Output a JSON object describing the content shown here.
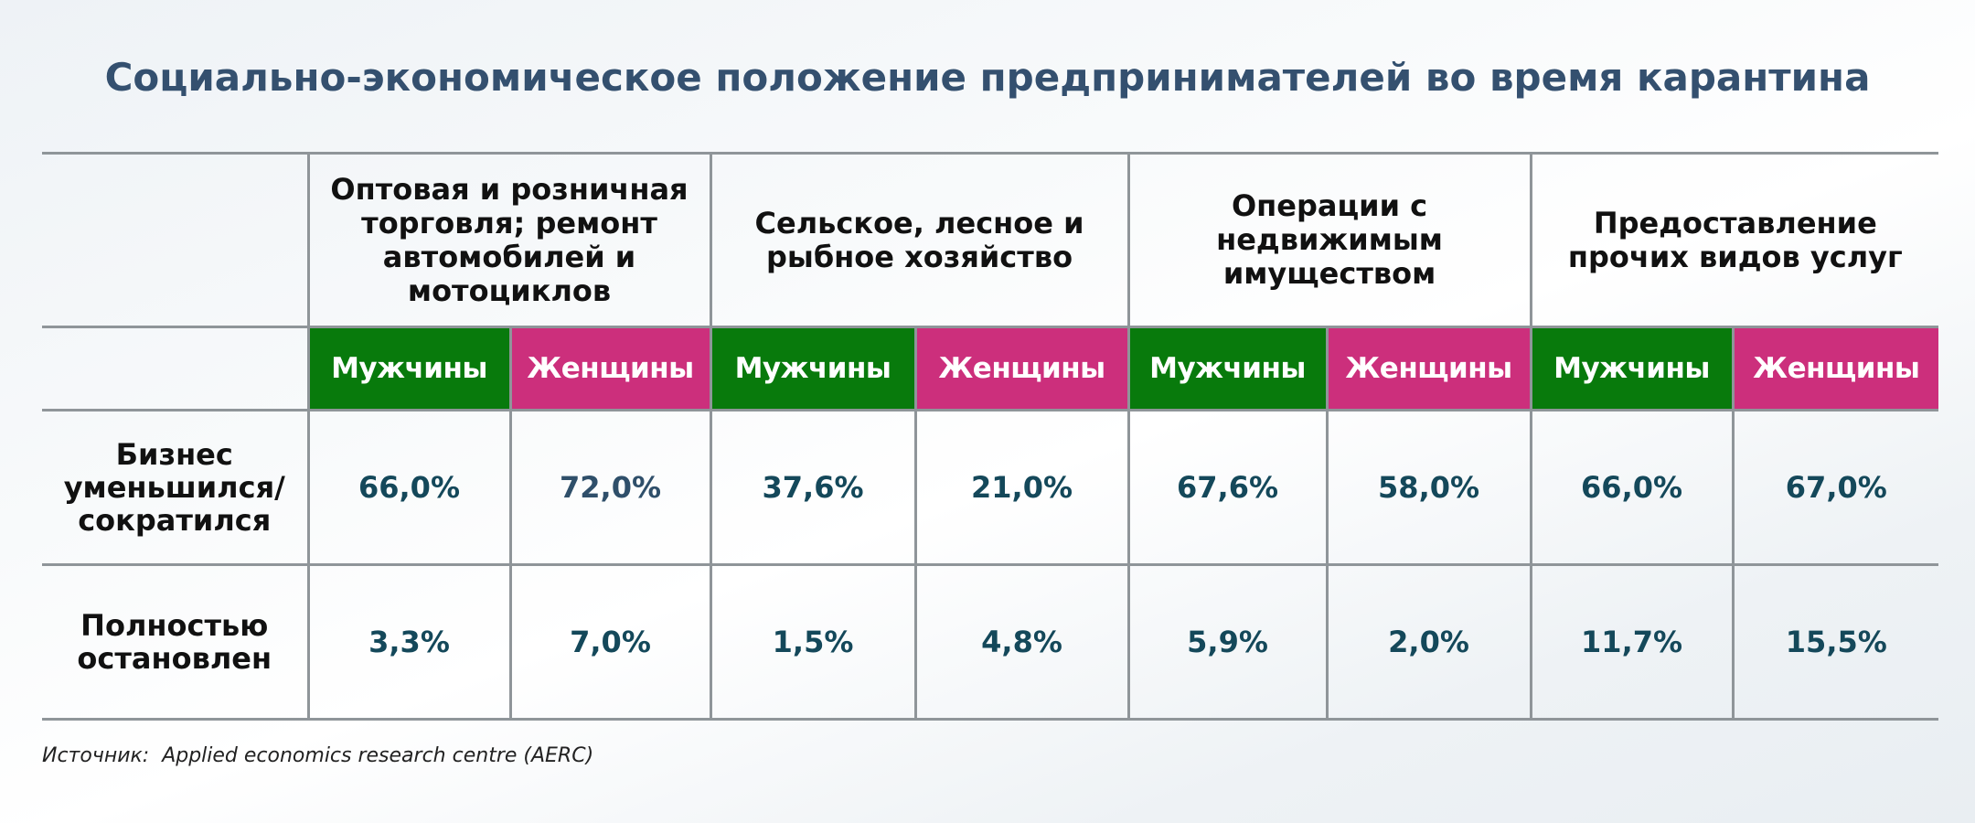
{
  "title": "Социально-экономическое положение предпринимателей во время карантина",
  "table": {
    "categories": [
      "Оптовая и розничная торговля; ремонт автомобилей и мотоциклов",
      "Сельское, лесное и рыбное хозяйство",
      "Операции с недвижимым имуществом",
      "Предоставление прочих видов услуг"
    ],
    "genders": {
      "male": "Мужчины",
      "female": "Женщины"
    },
    "rows": [
      {
        "label": "Бизнес уменьшился/ сократился",
        "values": [
          "66,0%",
          "72,0%",
          "37,6%",
          "21,0%",
          "67,6%",
          "58,0%",
          "66,0%",
          "67,0%"
        ]
      },
      {
        "label": "Полностью остановлен",
        "values": [
          "3,3%",
          "7,0%",
          "1,5%",
          "4,8%",
          "5,9%",
          "2,0%",
          "11,7%",
          "15,5%"
        ]
      }
    ]
  },
  "source": "Источник:  Applied economics research centre (AERC)",
  "colors": {
    "male": "#087a0c",
    "female": "#cc2f7c",
    "title": "#34506f",
    "value": "#14485a"
  }
}
